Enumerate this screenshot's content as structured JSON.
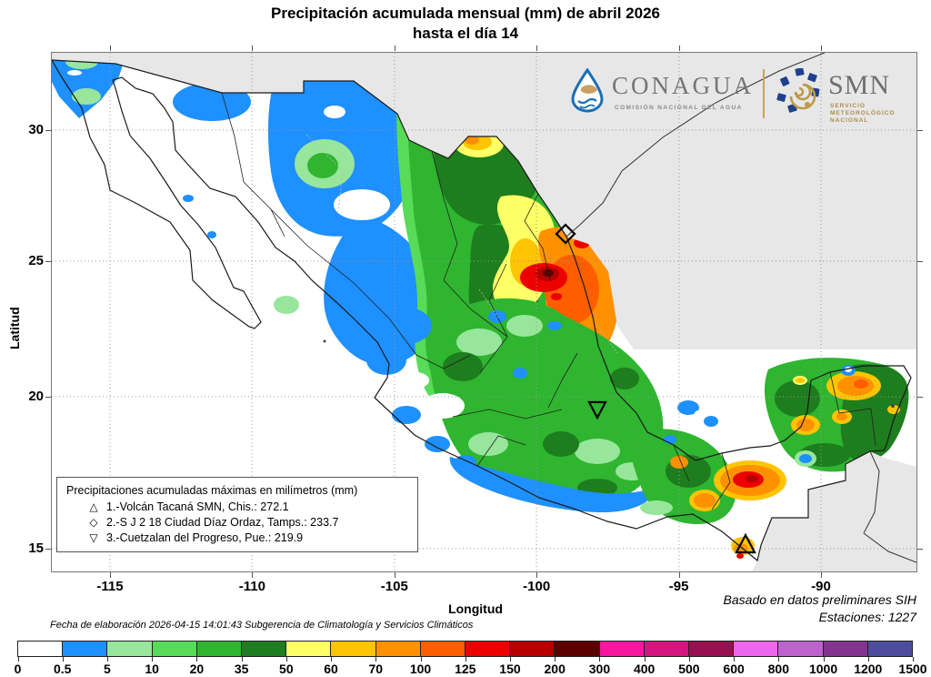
{
  "title": {
    "line1": "Precipitación acumulada mensual (mm) de abril 2026",
    "line2": "hasta el día 14"
  },
  "logos": {
    "conagua": {
      "name": "CONAGUA",
      "subtitle": "COMISIÓN NACIONAL DEL AGUA"
    },
    "smn": {
      "name": "SMN",
      "sub1": "SERVICIO",
      "sub2": "METEOROLÓGICO",
      "sub3": "NACIONAL"
    }
  },
  "axes": {
    "y_label": "Latitud",
    "x_label": "Longitud",
    "lat_ticks": [
      "30",
      "25",
      "20",
      "15"
    ],
    "lon_ticks": [
      "-115",
      "-110",
      "-105",
      "-100",
      "-95",
      "-90"
    ]
  },
  "station_legend": {
    "title": "Precipitaciones acumuladas máximas en milímetros (mm)",
    "items": [
      {
        "symbol": "△",
        "text": "1.-Volcán Tacaná SMN, Chis.: 272.1"
      },
      {
        "symbol": "◇",
        "text": "2.-S J 2 18 Ciudad Díaz Ordaz, Tamps.: 233.7"
      },
      {
        "symbol": "▽",
        "text": "3.-Cuetzalan del Progreso, Pue.: 219.9"
      }
    ]
  },
  "footer": {
    "left_italic": "Fecha de elaboración 2026-04-15 14:01:43 Subgerencia de Climatología y Servicios Climáticos",
    "right_line1": "Basado en datos preliminares SIH",
    "right_line2": "Estaciones:  1227"
  },
  "colorbar": {
    "labels": [
      "0",
      "0.5",
      "5",
      "10",
      "20",
      "35",
      "50",
      "60",
      "70",
      "100",
      "125",
      "150",
      "200",
      "300",
      "400",
      "500",
      "600",
      "800",
      "1000",
      "1200",
      "1500"
    ],
    "colors": [
      "#FFFFFF",
      "#1E90FF",
      "#97E69B",
      "#57DB58",
      "#2FB52F",
      "#1E7D1E",
      "#FFFF66",
      "#FFC403",
      "#FF9100",
      "#FF5E00",
      "#EC0000",
      "#B80000",
      "#5C0000",
      "#F7169F",
      "#D6147F",
      "#97104F",
      "#EE66EE",
      "#BE63CE",
      "#83348E",
      "#4D4D9E"
    ]
  },
  "chart_data": {
    "type": "heatmap",
    "title": "Precipitación acumulada mensual (mm) de abril 2026 hasta el día 14",
    "xlabel": "Longitud",
    "ylabel": "Latitud",
    "xlim": [
      -117.1,
      -86.6
    ],
    "ylim": [
      14.2,
      32.8
    ],
    "x_ticks": [
      -115,
      -110,
      -105,
      -100,
      -95,
      -90
    ],
    "y_ticks": [
      15,
      20,
      25,
      30
    ],
    "scale_mm": [
      0,
      0.5,
      5,
      10,
      20,
      35,
      50,
      60,
      70,
      100,
      125,
      150,
      200,
      300,
      400,
      500,
      600,
      800,
      1000,
      1200,
      1500
    ],
    "scale_colors": [
      "#FFFFFF",
      "#1E90FF",
      "#97E69B",
      "#57DB58",
      "#2FB52F",
      "#1E7D1E",
      "#FFFF66",
      "#FFC403",
      "#FF9100",
      "#FF5E00",
      "#EC0000",
      "#B80000",
      "#5C0000",
      "#F7169F",
      "#D6147F",
      "#97104F",
      "#EE66EE",
      "#BE63CE",
      "#83348E",
      "#4D4D9E"
    ],
    "stations_max": [
      {
        "rank": 1,
        "marker": "triangle-up",
        "name": "Volcán Tacaná SMN",
        "state": "Chis.",
        "value_mm": 272.1
      },
      {
        "rank": 2,
        "marker": "diamond",
        "name": "S J 2 18 Ciudad Díaz Ordaz",
        "state": "Tamps.",
        "value_mm": 233.7
      },
      {
        "rank": 3,
        "marker": "triangle-down",
        "name": "Cuetzalan del Progreso",
        "state": "Pue.",
        "value_mm": 219.9
      }
    ],
    "stations_count": 1227,
    "basis": "Basado en datos preliminares SIH"
  }
}
